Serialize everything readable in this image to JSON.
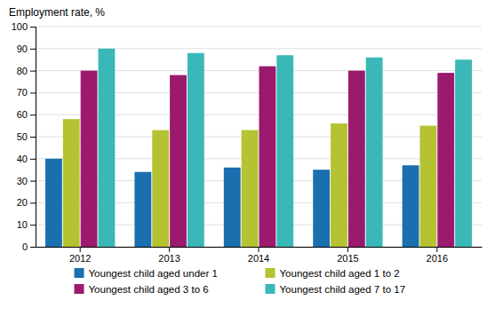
{
  "chart_data": {
    "type": "bar",
    "ylabel": "Employment rate, %",
    "categories": [
      "2012",
      "2013",
      "2014",
      "2015",
      "2016"
    ],
    "series": [
      {
        "name": "Youngest child aged under 1",
        "color": "#1a6faf",
        "values": [
          40,
          34,
          36,
          35,
          37
        ]
      },
      {
        "name": "Youngest child aged 1 to 2",
        "color": "#b5c232",
        "values": [
          58,
          53,
          53,
          56,
          55
        ]
      },
      {
        "name": "Youngest child aged 3 to 6",
        "color": "#9b1a6e",
        "values": [
          80,
          78,
          82,
          80,
          79
        ]
      },
      {
        "name": "Youngest child aged 7 to 17",
        "color": "#3ab8b8",
        "values": [
          90,
          88,
          87,
          86,
          85
        ]
      }
    ],
    "ylim": [
      0,
      100
    ],
    "yticks": [
      0,
      10,
      20,
      30,
      40,
      50,
      60,
      70,
      80,
      90,
      100
    ],
    "grid": true,
    "legend": "bottom"
  }
}
